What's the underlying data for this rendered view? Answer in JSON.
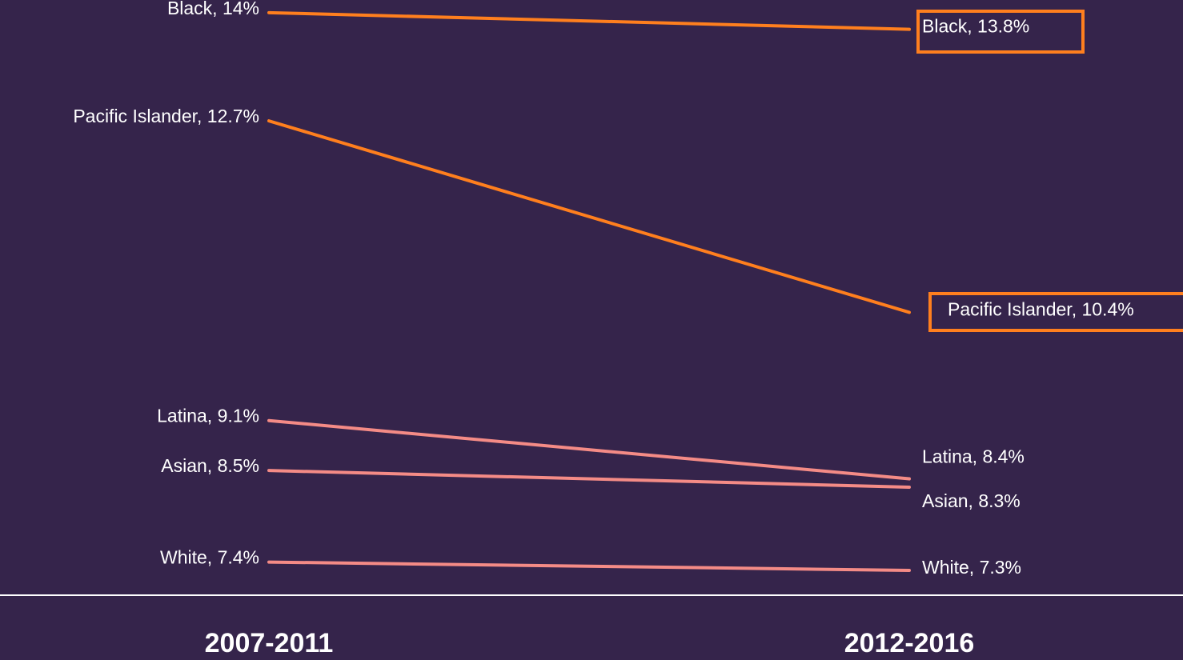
{
  "colors": {
    "background": "#35244b",
    "highlight": "#ff7f1e",
    "normal": "#f48b86",
    "text": "#ffffff",
    "axis": "#ffffff"
  },
  "chart_data": {
    "type": "line",
    "chart_style": "slope",
    "x": [
      "2007-2011",
      "2012-2016"
    ],
    "ylim": [
      7.0,
      14.5
    ],
    "grid": false,
    "legend": "none",
    "series": [
      {
        "name": "Black",
        "values": [
          14,
          13.8
        ],
        "labels": [
          "Black, 14%",
          "Black, 13.8%"
        ],
        "highlight": true
      },
      {
        "name": "Pacific Islander",
        "values": [
          12.7,
          10.4
        ],
        "labels": [
          "Pacific Islander, 12.7%",
          "Pacific Islander, 10.4%"
        ],
        "highlight": true
      },
      {
        "name": "Latina",
        "values": [
          9.1,
          8.4
        ],
        "labels": [
          "Latina, 9.1%",
          "Latina, 8.4%"
        ],
        "highlight": false
      },
      {
        "name": "Asian",
        "values": [
          8.5,
          8.3
        ],
        "labels": [
          "Asian, 8.5%",
          "Asian, 8.3%"
        ],
        "highlight": false
      },
      {
        "name": "White",
        "values": [
          7.4,
          7.3
        ],
        "labels": [
          "White, 7.4%",
          "White, 7.3%"
        ],
        "highlight": false
      }
    ]
  }
}
